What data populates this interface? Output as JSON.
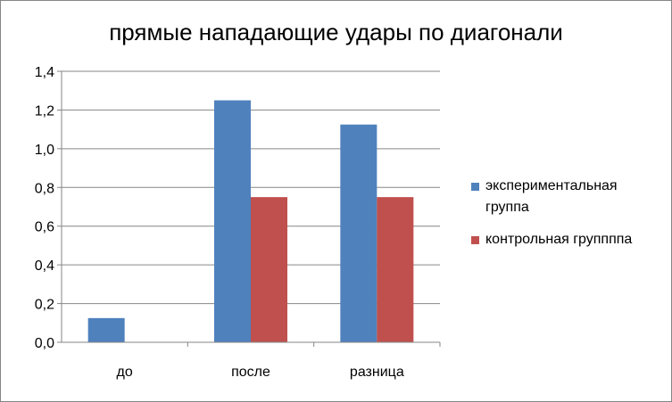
{
  "chart_data": {
    "type": "bar",
    "title": "прямые нападающие удары по диагонали",
    "categories": [
      "до",
      "после",
      "разница"
    ],
    "series": [
      {
        "name": "экспериментальная группа",
        "values": [
          0.125,
          1.25,
          1.125
        ],
        "color": "#4F81BD"
      },
      {
        "name": "контрольная группппа",
        "values": [
          0,
          0.75,
          0.75
        ],
        "color": "#C0504D"
      }
    ],
    "yticks": [
      "0,0",
      "0,2",
      "0,4",
      "0,6",
      "0,8",
      "1,0",
      "1,2",
      "1,4"
    ],
    "ylim": [
      0,
      1.4
    ],
    "ytick_step": 0.2,
    "grid": true,
    "legend_position": "right"
  }
}
